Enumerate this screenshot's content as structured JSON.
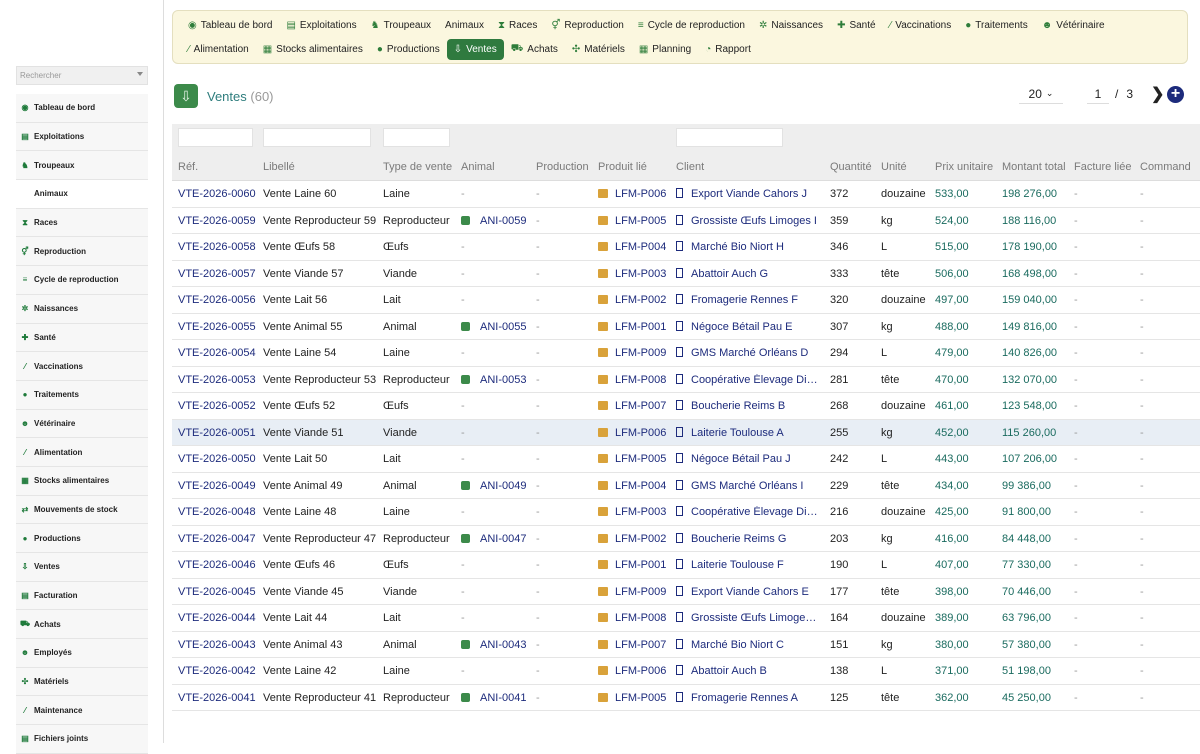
{
  "sidebar": {
    "search_placeholder": "Rechercher",
    "items": [
      {
        "label": "Tableau de bord",
        "icon": "dashboard-icon",
        "glyph": "◉",
        "sub": false
      },
      {
        "label": "Exploitations",
        "icon": "farm-icon",
        "glyph": "▤",
        "sub": false
      },
      {
        "label": "Troupeaux",
        "icon": "herd-icon",
        "glyph": "♞",
        "sub": false
      },
      {
        "label": "Animaux",
        "icon": "",
        "glyph": "",
        "sub": true
      },
      {
        "label": "Races",
        "icon": "dna-icon",
        "glyph": "⧗",
        "sub": false
      },
      {
        "label": "Reproduction",
        "icon": "reproduction-icon",
        "glyph": "⚥",
        "sub": false
      },
      {
        "label": "Cycle de reproduction",
        "icon": "cycle-icon",
        "glyph": "≡",
        "sub": false
      },
      {
        "label": "Naissances",
        "icon": "birth-icon",
        "glyph": "✲",
        "sub": false
      },
      {
        "label": "Santé",
        "icon": "health-icon",
        "glyph": "✚",
        "sub": false
      },
      {
        "label": "Vaccinations",
        "icon": "syringe-icon",
        "glyph": "⁄",
        "sub": false
      },
      {
        "label": "Traitements",
        "icon": "pills-icon",
        "glyph": "●",
        "sub": false
      },
      {
        "label": "Vétérinaire",
        "icon": "vet-icon",
        "glyph": "☻",
        "sub": false
      },
      {
        "label": "Alimentation",
        "icon": "feed-icon",
        "glyph": "⁄",
        "sub": false
      },
      {
        "label": "Stocks alimentaires",
        "icon": "stock-icon",
        "glyph": "▦",
        "sub": false
      },
      {
        "label": "Mouvements de stock",
        "icon": "transfer-icon",
        "glyph": "⇄",
        "sub": false
      },
      {
        "label": "Productions",
        "icon": "drop-icon",
        "glyph": "●",
        "sub": false
      },
      {
        "label": "Ventes",
        "icon": "sales-icon",
        "glyph": "⇩",
        "sub": false
      },
      {
        "label": "Facturation",
        "icon": "invoice-icon",
        "glyph": "▤",
        "sub": false
      },
      {
        "label": "Achats",
        "icon": "cart-icon",
        "glyph": "⛟",
        "sub": false
      },
      {
        "label": "Employés",
        "icon": "employee-icon",
        "glyph": "☻",
        "sub": false
      },
      {
        "label": "Matériels",
        "icon": "equipment-icon",
        "glyph": "✣",
        "sub": false
      },
      {
        "label": "Maintenance",
        "icon": "wrench-icon",
        "glyph": "⁄",
        "sub": false
      },
      {
        "label": "Fichiers joints",
        "icon": "attachment-icon",
        "glyph": "▤",
        "sub": false
      }
    ]
  },
  "topnav": {
    "row1": [
      {
        "label": "Tableau de bord",
        "icon": "dashboard-icon",
        "glyph": "◉"
      },
      {
        "label": "Exploitations",
        "icon": "farm-icon",
        "glyph": "▤"
      },
      {
        "label": "Troupeaux",
        "icon": "herd-icon",
        "glyph": "♞"
      },
      {
        "label": "Animaux",
        "icon": "",
        "glyph": ""
      },
      {
        "label": "Races",
        "icon": "dna-icon",
        "glyph": "⧗"
      },
      {
        "label": "Reproduction",
        "icon": "reproduction-icon",
        "glyph": "⚥"
      },
      {
        "label": "Cycle de reproduction",
        "icon": "cycle-icon",
        "glyph": "≡"
      },
      {
        "label": "Naissances",
        "icon": "birth-icon",
        "glyph": "✲"
      },
      {
        "label": "Santé",
        "icon": "health-icon",
        "glyph": "✚"
      },
      {
        "label": "Vaccinations",
        "icon": "syringe-icon",
        "glyph": "⁄"
      },
      {
        "label": "Traitements",
        "icon": "pills-icon",
        "glyph": "●"
      },
      {
        "label": "Vétérinaire",
        "icon": "vet-icon",
        "glyph": "☻"
      }
    ],
    "row2": [
      {
        "label": "Alimentation",
        "icon": "feed-icon",
        "glyph": "⁄",
        "active": false
      },
      {
        "label": "Stocks alimentaires",
        "icon": "stock-icon",
        "glyph": "▦",
        "active": false
      },
      {
        "label": "Productions",
        "icon": "drop-icon",
        "glyph": "●",
        "active": false
      },
      {
        "label": "Ventes",
        "icon": "sales-icon",
        "glyph": "⇩",
        "active": true
      },
      {
        "label": "Achats",
        "icon": "cart-icon",
        "glyph": "⛟",
        "active": false
      },
      {
        "label": "Matériels",
        "icon": "equipment-icon",
        "glyph": "✣",
        "active": false
      },
      {
        "label": "Planning",
        "icon": "calendar-icon",
        "glyph": "▦",
        "active": false
      },
      {
        "label": "Rapport",
        "icon": "report-icon",
        "glyph": "◔",
        "active": false
      }
    ]
  },
  "header": {
    "title": "Ventes",
    "count": "(60)",
    "per_page": "20",
    "page": "1",
    "page_sep": "/",
    "pages_total": "3"
  },
  "table": {
    "columns": [
      "Réf.",
      "Libellé",
      "Type de vente",
      "Animal",
      "Production",
      "Produit lié",
      "Client",
      "Quantité",
      "Unité",
      "Prix unitaire",
      "Montant total",
      "Facture liée",
      "Command"
    ],
    "empty": "-",
    "rows": [
      {
        "ref": "VTE-2026-0060",
        "libelle": "Vente Laine 60",
        "type": "Laine",
        "animal": "",
        "produit": "LFM-P006",
        "client": "Export Viande Cahors J",
        "qte": "372",
        "unite": "douzaine",
        "pu": "533,00",
        "total": "198 276,00"
      },
      {
        "ref": "VTE-2026-0059",
        "libelle": "Vente Reproducteur 59",
        "type": "Reproducteur",
        "animal": "ANI-0059",
        "produit": "LFM-P005",
        "client": "Grossiste Œufs Limoges I",
        "qte": "359",
        "unite": "kg",
        "pu": "524,00",
        "total": "188 116,00"
      },
      {
        "ref": "VTE-2026-0058",
        "libelle": "Vente Œufs 58",
        "type": "Œufs",
        "animal": "",
        "produit": "LFM-P004",
        "client": "Marché Bio Niort H",
        "qte": "346",
        "unite": "L",
        "pu": "515,00",
        "total": "178 190,00"
      },
      {
        "ref": "VTE-2026-0057",
        "libelle": "Vente Viande 57",
        "type": "Viande",
        "animal": "",
        "produit": "LFM-P003",
        "client": "Abattoir Auch G",
        "qte": "333",
        "unite": "tête",
        "pu": "506,00",
        "total": "168 498,00"
      },
      {
        "ref": "VTE-2026-0056",
        "libelle": "Vente Lait 56",
        "type": "Lait",
        "animal": "",
        "produit": "LFM-P002",
        "client": "Fromagerie Rennes F",
        "qte": "320",
        "unite": "douzaine",
        "pu": "497,00",
        "total": "159 040,00"
      },
      {
        "ref": "VTE-2026-0055",
        "libelle": "Vente Animal 55",
        "type": "Animal",
        "animal": "ANI-0055",
        "produit": "LFM-P001",
        "client": "Négoce Bétail Pau E",
        "qte": "307",
        "unite": "kg",
        "pu": "488,00",
        "total": "149 816,00"
      },
      {
        "ref": "VTE-2026-0054",
        "libelle": "Vente Laine 54",
        "type": "Laine",
        "animal": "",
        "produit": "LFM-P009",
        "client": "GMS Marché Orléans D",
        "qte": "294",
        "unite": "L",
        "pu": "479,00",
        "total": "140 826,00"
      },
      {
        "ref": "VTE-2026-0053",
        "libelle": "Vente Reproducteur 53",
        "type": "Reproducteur",
        "animal": "ANI-0053",
        "produit": "LFM-P008",
        "client": "Coopérative Élevage Dijon C",
        "qte": "281",
        "unite": "tête",
        "pu": "470,00",
        "total": "132 070,00"
      },
      {
        "ref": "VTE-2026-0052",
        "libelle": "Vente Œufs 52",
        "type": "Œufs",
        "animal": "",
        "produit": "LFM-P007",
        "client": "Boucherie Reims B",
        "qte": "268",
        "unite": "douzaine",
        "pu": "461,00",
        "total": "123 548,00"
      },
      {
        "ref": "VTE-2026-0051",
        "libelle": "Vente Viande 51",
        "type": "Viande",
        "animal": "",
        "produit": "LFM-P006",
        "client": "Laiterie Toulouse A",
        "qte": "255",
        "unite": "kg",
        "pu": "452,00",
        "total": "115 260,00",
        "hl": true
      },
      {
        "ref": "VTE-2026-0050",
        "libelle": "Vente Lait 50",
        "type": "Lait",
        "animal": "",
        "produit": "LFM-P005",
        "client": "Négoce Bétail Pau J",
        "qte": "242",
        "unite": "L",
        "pu": "443,00",
        "total": "107 206,00"
      },
      {
        "ref": "VTE-2026-0049",
        "libelle": "Vente Animal 49",
        "type": "Animal",
        "animal": "ANI-0049",
        "produit": "LFM-P004",
        "client": "GMS Marché Orléans I",
        "qte": "229",
        "unite": "tête",
        "pu": "434,00",
        "total": "99 386,00"
      },
      {
        "ref": "VTE-2026-0048",
        "libelle": "Vente Laine 48",
        "type": "Laine",
        "animal": "",
        "produit": "LFM-P003",
        "client": "Coopérative Élevage Dijon H",
        "qte": "216",
        "unite": "douzaine",
        "pu": "425,00",
        "total": "91 800,00"
      },
      {
        "ref": "VTE-2026-0047",
        "libelle": "Vente Reproducteur 47",
        "type": "Reproducteur",
        "animal": "ANI-0047",
        "produit": "LFM-P002",
        "client": "Boucherie Reims G",
        "qte": "203",
        "unite": "kg",
        "pu": "416,00",
        "total": "84 448,00"
      },
      {
        "ref": "VTE-2026-0046",
        "libelle": "Vente Œufs 46",
        "type": "Œufs",
        "animal": "",
        "produit": "LFM-P001",
        "client": "Laiterie Toulouse F",
        "qte": "190",
        "unite": "L",
        "pu": "407,00",
        "total": "77 330,00"
      },
      {
        "ref": "VTE-2026-0045",
        "libelle": "Vente Viande 45",
        "type": "Viande",
        "animal": "",
        "produit": "LFM-P009",
        "client": "Export Viande Cahors E",
        "qte": "177",
        "unite": "tête",
        "pu": "398,00",
        "total": "70 446,00"
      },
      {
        "ref": "VTE-2026-0044",
        "libelle": "Vente Lait 44",
        "type": "Lait",
        "animal": "",
        "produit": "LFM-P008",
        "client": "Grossiste Œufs Limoges D",
        "qte": "164",
        "unite": "douzaine",
        "pu": "389,00",
        "total": "63 796,00"
      },
      {
        "ref": "VTE-2026-0043",
        "libelle": "Vente Animal 43",
        "type": "Animal",
        "animal": "ANI-0043",
        "produit": "LFM-P007",
        "client": "Marché Bio Niort C",
        "qte": "151",
        "unite": "kg",
        "pu": "380,00",
        "total": "57 380,00"
      },
      {
        "ref": "VTE-2026-0042",
        "libelle": "Vente Laine 42",
        "type": "Laine",
        "animal": "",
        "produit": "LFM-P006",
        "client": "Abattoir Auch B",
        "qte": "138",
        "unite": "L",
        "pu": "371,00",
        "total": "51 198,00"
      },
      {
        "ref": "VTE-2026-0041",
        "libelle": "Vente Reproducteur 41",
        "type": "Reproducteur",
        "animal": "ANI-0041",
        "produit": "LFM-P005",
        "client": "Fromagerie Rennes A",
        "qte": "125",
        "unite": "tête",
        "pu": "362,00",
        "total": "45 250,00"
      }
    ]
  },
  "colors": {
    "accent": "#2f7a3f",
    "link": "#1d2b7c",
    "money": "#1a6b5f",
    "nav_bg": "#fbf7df"
  }
}
